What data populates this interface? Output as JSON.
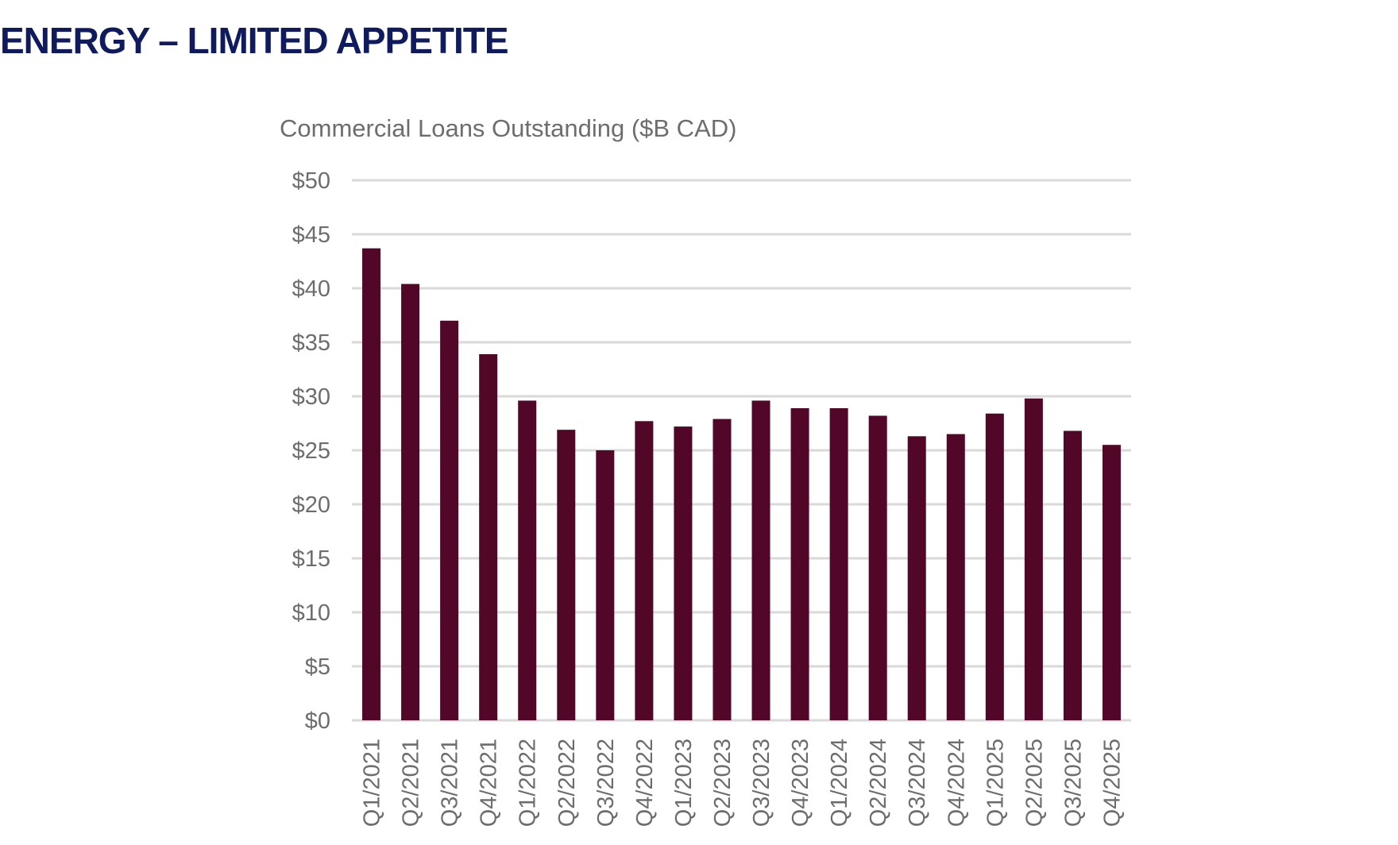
{
  "page": {
    "title": "ENERGY – LIMITED APPETITE"
  },
  "colors": {
    "bar": "#520628",
    "title": "#0f1b5c",
    "grid": "#d9d9d9",
    "text": "#6d6d6d"
  },
  "chart_data": {
    "type": "bar",
    "title": "Commercial Loans Outstanding ($B CAD)",
    "xlabel": "",
    "ylabel": "",
    "ylim": [
      0,
      50
    ],
    "yticks": [
      0,
      5,
      10,
      15,
      20,
      25,
      30,
      35,
      40,
      45,
      50
    ],
    "ytick_labels": [
      "$0",
      "$5",
      "$10",
      "$15",
      "$20",
      "$25",
      "$30",
      "$35",
      "$40",
      "$45",
      "$50"
    ],
    "grid": true,
    "legend": "none",
    "categories": [
      "Q1/2021",
      "Q2/2021",
      "Q3/2021",
      "Q4/2021",
      "Q1/2022",
      "Q2/2022",
      "Q3/2022",
      "Q4/2022",
      "Q1/2023",
      "Q2/2023",
      "Q3/2023",
      "Q4/2023",
      "Q1/2024",
      "Q2/2024",
      "Q3/2024",
      "Q4/2024",
      "Q1/2025",
      "Q2/2025",
      "Q3/2025",
      "Q4/2025"
    ],
    "values": [
      43.7,
      40.4,
      37.0,
      33.9,
      29.6,
      26.9,
      25.0,
      27.7,
      27.2,
      27.9,
      29.6,
      28.9,
      28.9,
      28.2,
      26.3,
      26.5,
      28.4,
      29.8,
      26.8,
      25.5
    ]
  }
}
